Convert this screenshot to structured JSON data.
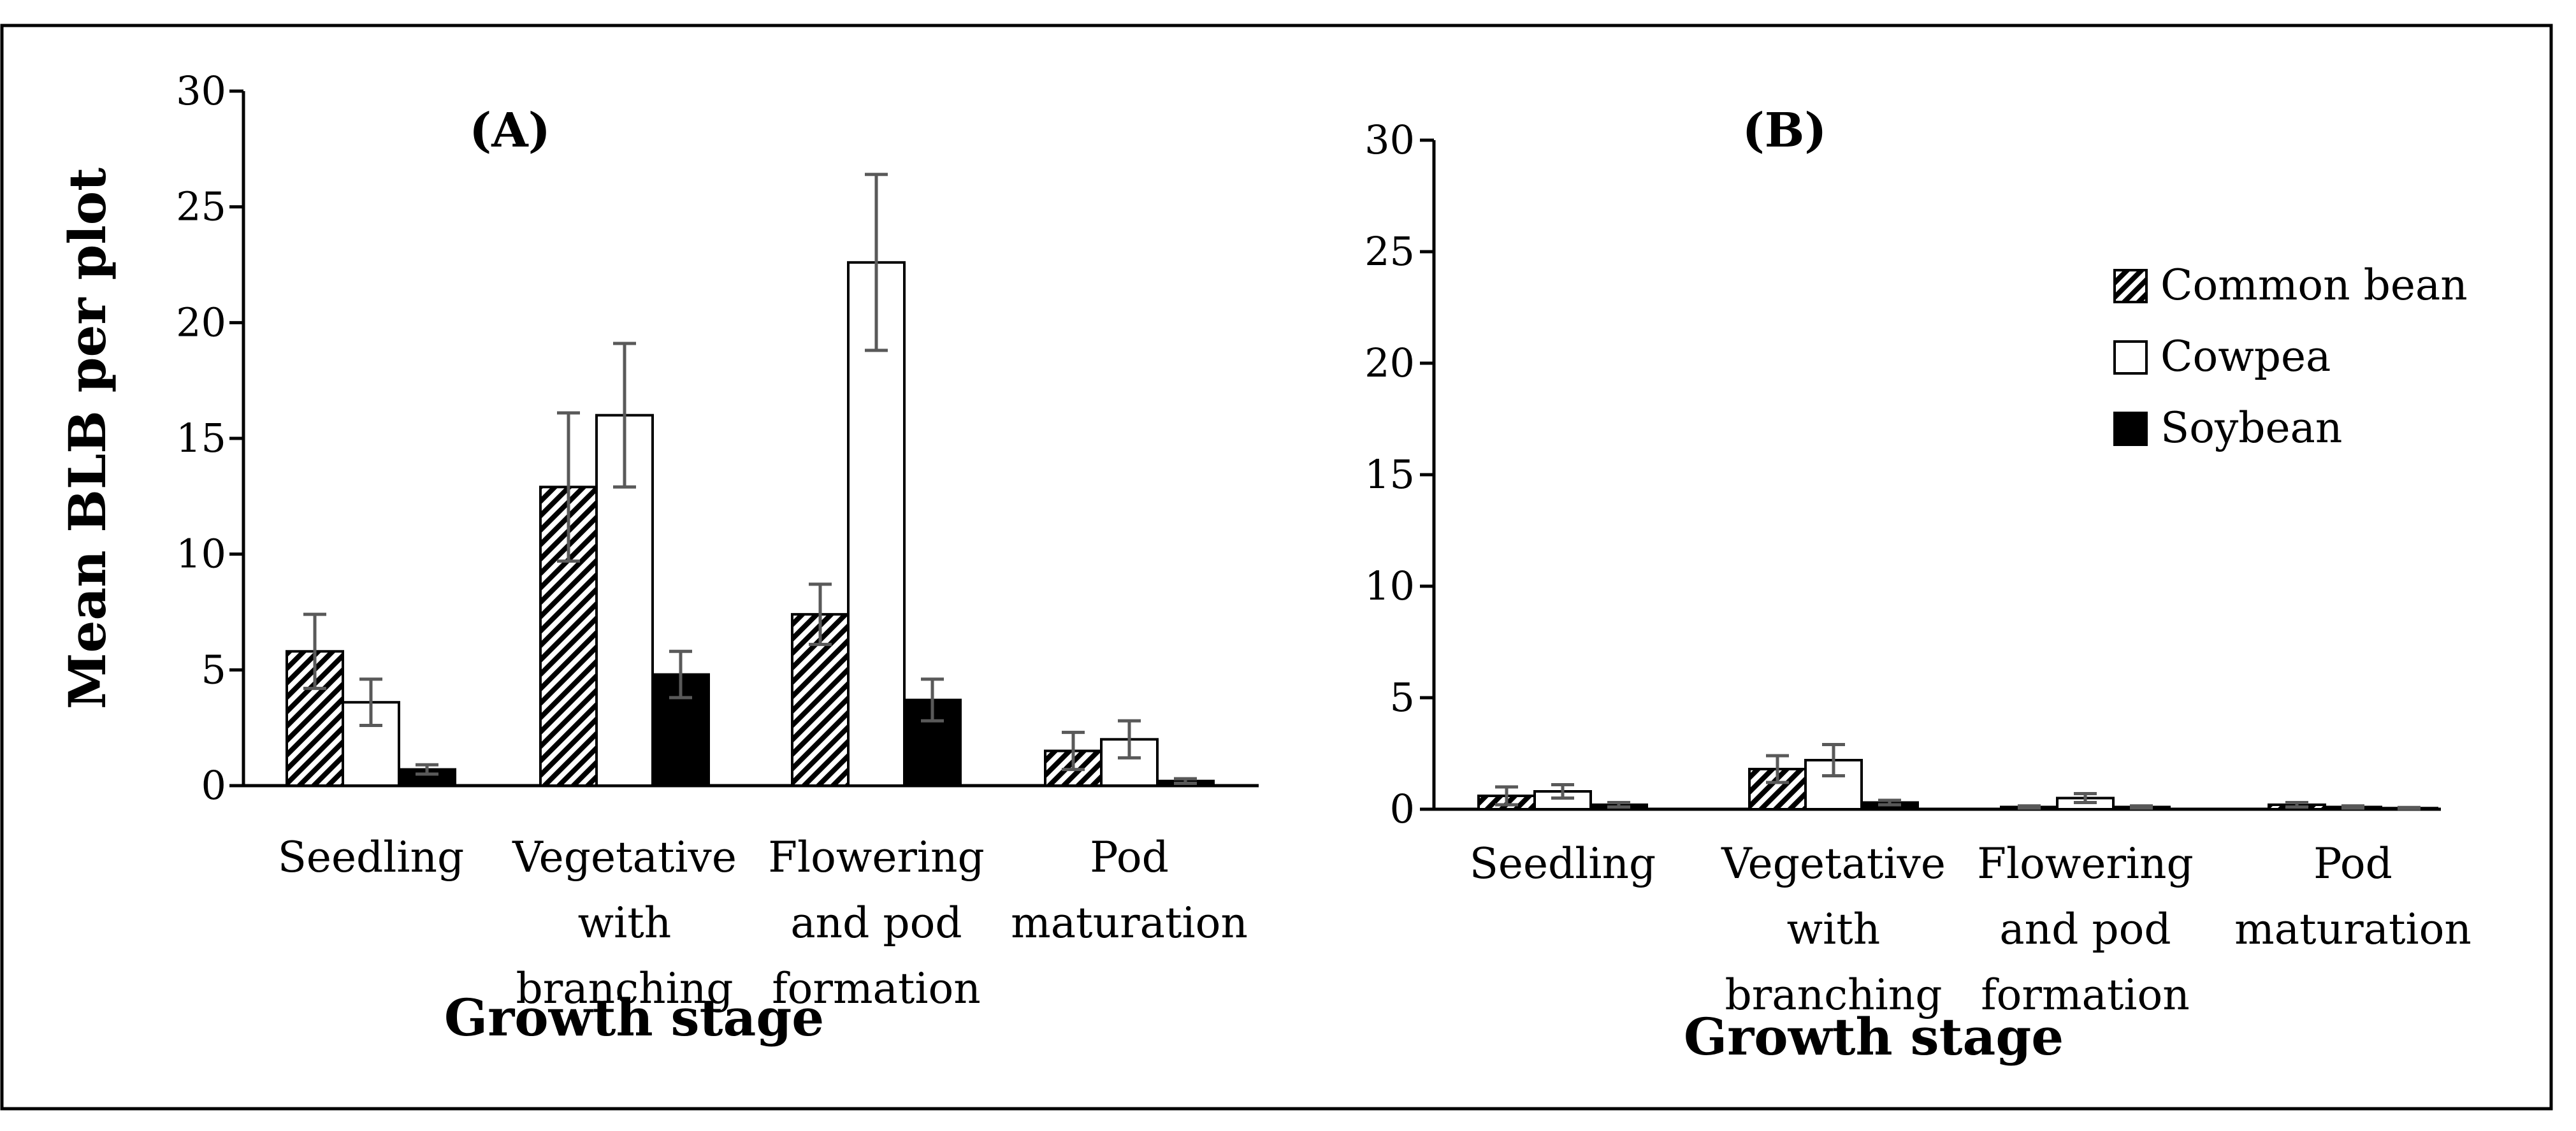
{
  "colors": {
    "frame": "#000000",
    "axis": "#000000",
    "bar_outline": "#000000",
    "error_bar": "#595959",
    "soybean_fill": "#000000",
    "cowpea_fill": "#ffffff",
    "hatch_stroke": "#000000"
  },
  "legend": {
    "items": [
      {
        "name": "Common bean",
        "pattern": "hatch"
      },
      {
        "name": "Cowpea",
        "pattern": "open"
      },
      {
        "name": "Soybean",
        "pattern": "solid"
      }
    ]
  },
  "chart_data": [
    {
      "type": "bar",
      "panel_label": "(A)",
      "ylabel": "Mean BLB per plot",
      "xlabel": "Growth stage",
      "ylim": [
        0,
        30
      ],
      "yticks": [
        "0",
        "5",
        "10",
        "15",
        "20",
        "25",
        "30"
      ],
      "categories": [
        [
          "Seedling"
        ],
        [
          "Vegetative",
          "with",
          "branching"
        ],
        [
          "Flowering",
          "and pod",
          "formation"
        ],
        [
          "Pod",
          "maturation"
        ]
      ],
      "series": [
        {
          "name": "Common bean",
          "values": [
            5.8,
            12.9,
            7.4,
            1.5
          ],
          "errors": [
            1.6,
            3.2,
            1.3,
            0.8
          ]
        },
        {
          "name": "Cowpea",
          "values": [
            3.6,
            16.0,
            22.6,
            2.0
          ],
          "errors": [
            1.0,
            3.1,
            3.8,
            0.8
          ]
        },
        {
          "name": "Soybean",
          "values": [
            0.7,
            4.8,
            3.7,
            0.2
          ],
          "errors": [
            0.2,
            1.0,
            0.9,
            0.1
          ]
        }
      ]
    },
    {
      "type": "bar",
      "panel_label": "(B)",
      "ylabel": "",
      "xlabel": "Growth stage",
      "ylim": [
        0,
        30
      ],
      "yticks": [
        "0",
        "5",
        "10",
        "15",
        "20",
        "25",
        "30"
      ],
      "legend_position": "top-right",
      "categories": [
        [
          "Seedling"
        ],
        [
          "Vegetative",
          "with",
          "branching"
        ],
        [
          "Flowering",
          "and pod",
          "formation"
        ],
        [
          "Pod",
          "maturation"
        ]
      ],
      "series": [
        {
          "name": "Common bean",
          "values": [
            0.6,
            1.8,
            0.1,
            0.2
          ],
          "errors": [
            0.4,
            0.6,
            0.05,
            0.1
          ]
        },
        {
          "name": "Cowpea",
          "values": [
            0.8,
            2.2,
            0.5,
            0.1
          ],
          "errors": [
            0.3,
            0.7,
            0.2,
            0.05
          ]
        },
        {
          "name": "Soybean",
          "values": [
            0.2,
            0.3,
            0.1,
            0.05
          ],
          "errors": [
            0.1,
            0.1,
            0.05,
            0.03
          ]
        }
      ]
    }
  ]
}
